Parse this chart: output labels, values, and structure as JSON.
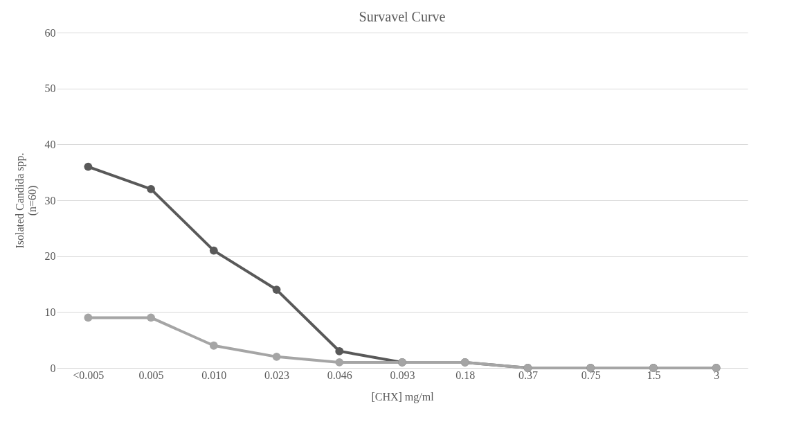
{
  "chart_data": {
    "type": "line",
    "title": "Survavel Curve",
    "xlabel": "[CHX] mg/ml",
    "ylabel": "Isolated Candida spp.\n(n=60)",
    "categories": [
      "<0.005",
      "0.005",
      "0.010",
      "0.023",
      "0.046",
      "0.093",
      "0.18",
      "0.37",
      "0.75",
      "1.5",
      "3"
    ],
    "series": [
      {
        "color": "#595959",
        "values": [
          36,
          32,
          21,
          14,
          3,
          1,
          1,
          0,
          0,
          0,
          0
        ]
      },
      {
        "color": "#a5a5a5",
        "values": [
          9,
          9,
          4,
          2,
          1,
          1,
          1,
          0,
          0,
          0,
          0
        ]
      }
    ],
    "ylim": [
      0,
      60
    ],
    "yticks": [
      0,
      10,
      20,
      30,
      40,
      50,
      60
    ],
    "grid": "y",
    "marker": "circle",
    "line_style": "solid"
  }
}
